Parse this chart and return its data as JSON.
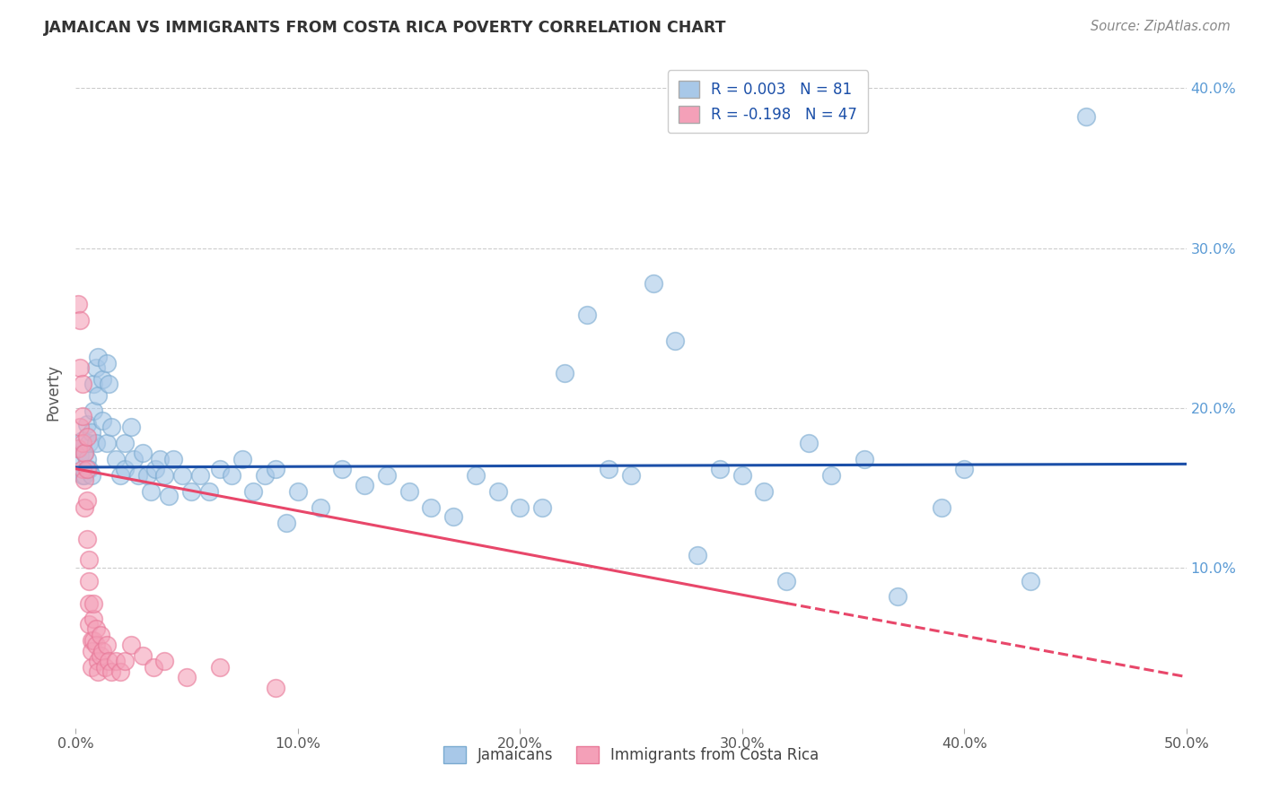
{
  "title": "JAMAICAN VS IMMIGRANTS FROM COSTA RICA POVERTY CORRELATION CHART",
  "source": "Source: ZipAtlas.com",
  "ylabel": "Poverty",
  "xlim": [
    0,
    0.5
  ],
  "ylim": [
    0,
    0.42
  ],
  "xticks": [
    0.0,
    0.1,
    0.2,
    0.3,
    0.4,
    0.5
  ],
  "xtick_labels": [
    "0.0%",
    "10.0%",
    "20.0%",
    "30.0%",
    "40.0%",
    "50.0%"
  ],
  "yticks": [
    0.0,
    0.1,
    0.2,
    0.3,
    0.4
  ],
  "ytick_labels": [
    "",
    "10.0%",
    "20.0%",
    "30.0%",
    "40.0%"
  ],
  "legend_line1": "R = 0.003   N = 81",
  "legend_line2": "R = -0.198   N = 47",
  "legend_label_blue": "Jamaicans",
  "legend_label_pink": "Immigrants from Costa Rica",
  "blue_color": "#A8C8E8",
  "pink_color": "#F4A0B8",
  "blue_edge_color": "#7AAAD0",
  "pink_edge_color": "#E87898",
  "blue_line_color": "#1B4FA8",
  "pink_line_color": "#E8476A",
  "legend_text_color": "#1B4FA8",
  "title_color": "#333333",
  "source_color": "#888888",
  "grid_color": "#CCCCCC",
  "blue_scatter": [
    [
      0.001,
      0.175
    ],
    [
      0.002,
      0.17
    ],
    [
      0.003,
      0.18
    ],
    [
      0.003,
      0.158
    ],
    [
      0.004,
      0.172
    ],
    [
      0.004,
      0.158
    ],
    [
      0.005,
      0.19
    ],
    [
      0.005,
      0.168
    ],
    [
      0.006,
      0.178
    ],
    [
      0.006,
      0.162
    ],
    [
      0.007,
      0.185
    ],
    [
      0.007,
      0.158
    ],
    [
      0.008,
      0.215
    ],
    [
      0.008,
      0.198
    ],
    [
      0.009,
      0.225
    ],
    [
      0.009,
      0.178
    ],
    [
      0.01,
      0.232
    ],
    [
      0.01,
      0.208
    ],
    [
      0.012,
      0.218
    ],
    [
      0.012,
      0.192
    ],
    [
      0.014,
      0.228
    ],
    [
      0.014,
      0.178
    ],
    [
      0.015,
      0.215
    ],
    [
      0.016,
      0.188
    ],
    [
      0.018,
      0.168
    ],
    [
      0.02,
      0.158
    ],
    [
      0.022,
      0.178
    ],
    [
      0.022,
      0.162
    ],
    [
      0.025,
      0.188
    ],
    [
      0.026,
      0.168
    ],
    [
      0.028,
      0.158
    ],
    [
      0.03,
      0.172
    ],
    [
      0.032,
      0.158
    ],
    [
      0.034,
      0.148
    ],
    [
      0.036,
      0.162
    ],
    [
      0.038,
      0.168
    ],
    [
      0.04,
      0.158
    ],
    [
      0.042,
      0.145
    ],
    [
      0.044,
      0.168
    ],
    [
      0.048,
      0.158
    ],
    [
      0.052,
      0.148
    ],
    [
      0.056,
      0.158
    ],
    [
      0.06,
      0.148
    ],
    [
      0.065,
      0.162
    ],
    [
      0.07,
      0.158
    ],
    [
      0.075,
      0.168
    ],
    [
      0.08,
      0.148
    ],
    [
      0.085,
      0.158
    ],
    [
      0.09,
      0.162
    ],
    [
      0.095,
      0.128
    ],
    [
      0.1,
      0.148
    ],
    [
      0.11,
      0.138
    ],
    [
      0.12,
      0.162
    ],
    [
      0.13,
      0.152
    ],
    [
      0.14,
      0.158
    ],
    [
      0.15,
      0.148
    ],
    [
      0.16,
      0.138
    ],
    [
      0.17,
      0.132
    ],
    [
      0.18,
      0.158
    ],
    [
      0.19,
      0.148
    ],
    [
      0.2,
      0.138
    ],
    [
      0.21,
      0.138
    ],
    [
      0.22,
      0.222
    ],
    [
      0.23,
      0.258
    ],
    [
      0.24,
      0.162
    ],
    [
      0.25,
      0.158
    ],
    [
      0.26,
      0.278
    ],
    [
      0.27,
      0.242
    ],
    [
      0.28,
      0.108
    ],
    [
      0.29,
      0.162
    ],
    [
      0.3,
      0.158
    ],
    [
      0.31,
      0.148
    ],
    [
      0.32,
      0.092
    ],
    [
      0.33,
      0.178
    ],
    [
      0.34,
      0.158
    ],
    [
      0.355,
      0.168
    ],
    [
      0.37,
      0.082
    ],
    [
      0.39,
      0.138
    ],
    [
      0.4,
      0.162
    ],
    [
      0.43,
      0.092
    ],
    [
      0.455,
      0.382
    ]
  ],
  "pink_scatter": [
    [
      0.001,
      0.265
    ],
    [
      0.001,
      0.175
    ],
    [
      0.002,
      0.255
    ],
    [
      0.002,
      0.225
    ],
    [
      0.002,
      0.188
    ],
    [
      0.003,
      0.215
    ],
    [
      0.003,
      0.195
    ],
    [
      0.003,
      0.178
    ],
    [
      0.003,
      0.162
    ],
    [
      0.004,
      0.172
    ],
    [
      0.004,
      0.155
    ],
    [
      0.004,
      0.138
    ],
    [
      0.005,
      0.182
    ],
    [
      0.005,
      0.162
    ],
    [
      0.005,
      0.142
    ],
    [
      0.005,
      0.118
    ],
    [
      0.006,
      0.105
    ],
    [
      0.006,
      0.092
    ],
    [
      0.006,
      0.078
    ],
    [
      0.006,
      0.065
    ],
    [
      0.007,
      0.055
    ],
    [
      0.007,
      0.048
    ],
    [
      0.007,
      0.038
    ],
    [
      0.008,
      0.055
    ],
    [
      0.008,
      0.068
    ],
    [
      0.008,
      0.078
    ],
    [
      0.009,
      0.062
    ],
    [
      0.009,
      0.052
    ],
    [
      0.01,
      0.042
    ],
    [
      0.01,
      0.035
    ],
    [
      0.011,
      0.045
    ],
    [
      0.011,
      0.058
    ],
    [
      0.012,
      0.048
    ],
    [
      0.013,
      0.038
    ],
    [
      0.014,
      0.052
    ],
    [
      0.015,
      0.042
    ],
    [
      0.016,
      0.035
    ],
    [
      0.018,
      0.042
    ],
    [
      0.02,
      0.035
    ],
    [
      0.022,
      0.042
    ],
    [
      0.025,
      0.052
    ],
    [
      0.03,
      0.045
    ],
    [
      0.035,
      0.038
    ],
    [
      0.04,
      0.042
    ],
    [
      0.05,
      0.032
    ],
    [
      0.065,
      0.038
    ],
    [
      0.09,
      0.025
    ]
  ],
  "blue_trend": {
    "x_start": 0.0,
    "x_end": 0.5,
    "y_start": 0.163,
    "y_end": 0.165
  },
  "pink_trend_solid": {
    "x_start": 0.0,
    "x_end": 0.32,
    "y_start": 0.162,
    "y_end": 0.078
  },
  "pink_trend_dashed": {
    "x_start": 0.32,
    "x_end": 0.5,
    "y_start": 0.078,
    "y_end": 0.032
  }
}
